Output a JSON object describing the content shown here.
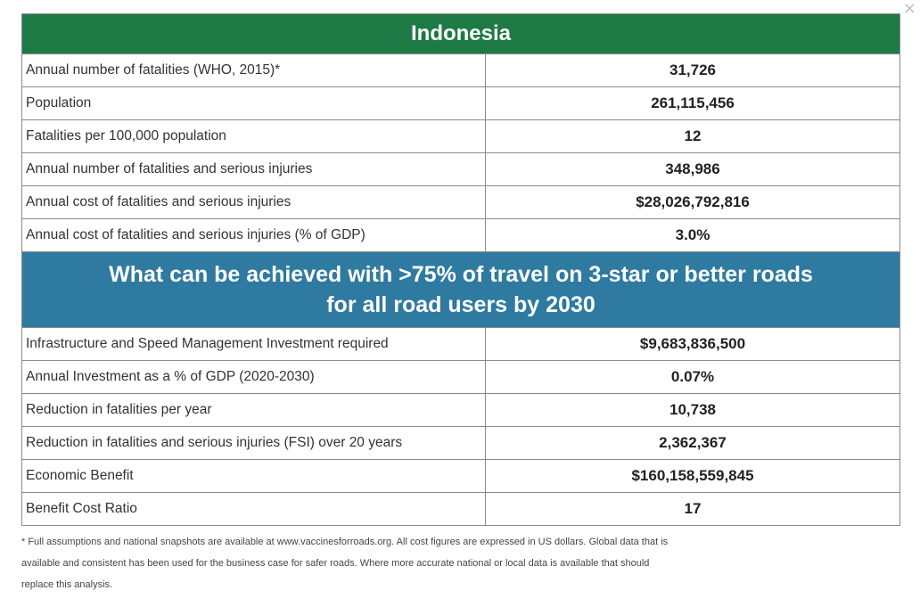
{
  "close_glyph": "×",
  "country": "Indonesia",
  "overview_rows": [
    {
      "label": "Annual number of fatalities (WHO, 2015)*",
      "value": "31,726"
    },
    {
      "label": "Population",
      "value": "261,115,456"
    },
    {
      "label": "Fatalities per 100,000 population",
      "value": "12"
    },
    {
      "label": "Annual number of fatalities and serious injuries",
      "value": "348,986"
    },
    {
      "label": "Annual cost of fatalities and serious injuries",
      "value": "$28,026,792,816"
    },
    {
      "label": "Annual cost of fatalities and serious injuries (% of GDP)",
      "value": "3.0%"
    }
  ],
  "section_heading": {
    "line1": "What can be achieved with >75% of travel on 3-star or better roads",
    "line2": "for all road users by 2030"
  },
  "achievement_rows": [
    {
      "label": "Infrastructure and Speed Management Investment required",
      "value": "$9,683,836,500"
    },
    {
      "label": "Annual Investment as a % of GDP (2020-2030)",
      "value": "0.07%"
    },
    {
      "label": "Reduction in fatalities per year",
      "value": "10,738"
    },
    {
      "label": "Reduction in fatalities and serious injuries (FSI) over 20 years",
      "value": "2,362,367"
    },
    {
      "label": "Economic Benefit",
      "value": "$160,158,559,845"
    },
    {
      "label": "Benefit Cost Ratio",
      "value": "17"
    }
  ],
  "footnote": {
    "line1": "* Full assumptions and national snapshots are available at www.vaccinesforroads.org. All cost figures are expressed in US dollars. Global data that is",
    "line2": "available and consistent has been used for the business case for safer roads. Where more accurate national or local data is available that should",
    "line3": "replace this analysis."
  },
  "colors": {
    "country_header_bg": "#1e7a45",
    "section_header_bg": "#2f7aa0",
    "border": "#8a8a8a"
  }
}
